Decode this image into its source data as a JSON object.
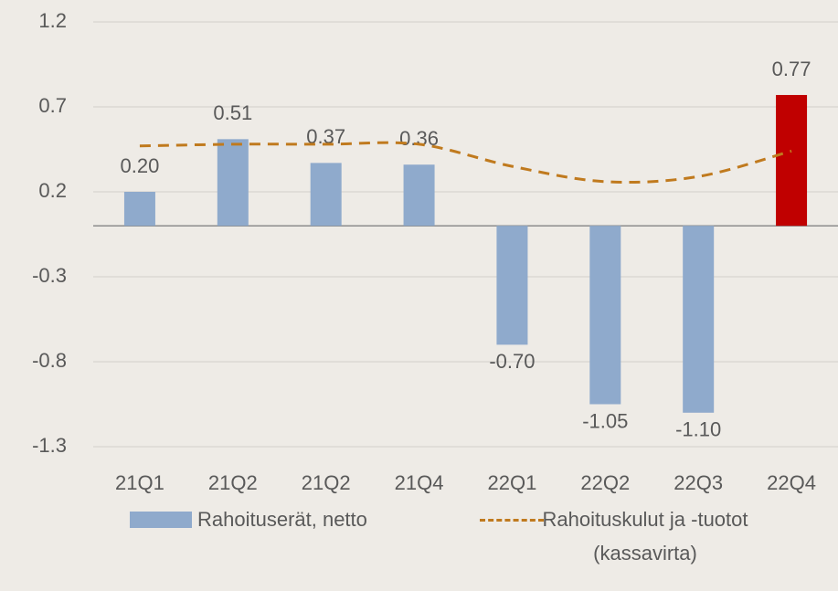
{
  "chart_data": {
    "type": "bar",
    "categories": [
      "21Q1",
      "21Q2",
      "21Q2",
      "21Q4",
      "22Q1",
      "22Q2",
      "22Q3",
      "22Q4"
    ],
    "series": [
      {
        "name": "Rahoituserät, netto",
        "type": "bar",
        "color": "#8faacc",
        "colors": [
          "#8faacc",
          "#8faacc",
          "#8faacc",
          "#8faacc",
          "#8faacc",
          "#8faacc",
          "#8faacc",
          "#c00000"
        ],
        "values": [
          0.2,
          0.51,
          0.37,
          0.36,
          -0.7,
          -1.05,
          -1.1,
          0.77
        ],
        "value_labels": [
          "0.20",
          "0.51",
          "0.37",
          "0.36",
          "-0.70",
          "-1.05",
          "-1.10",
          "0.77"
        ]
      },
      {
        "name": "Rahoituskulut ja -tuotot (kassavirta)",
        "type": "line",
        "color": "#c07a1e",
        "dashed": true,
        "smooth": true,
        "values": [
          0.47,
          0.48,
          0.48,
          0.48,
          0.35,
          0.26,
          0.29,
          0.44
        ]
      }
    ],
    "ylim": [
      -1.3,
      1.2
    ],
    "yticks": [
      -1.3,
      -0.8,
      -0.3,
      0.2,
      0.7,
      1.2
    ],
    "grid": true,
    "legend": "bottom"
  }
}
